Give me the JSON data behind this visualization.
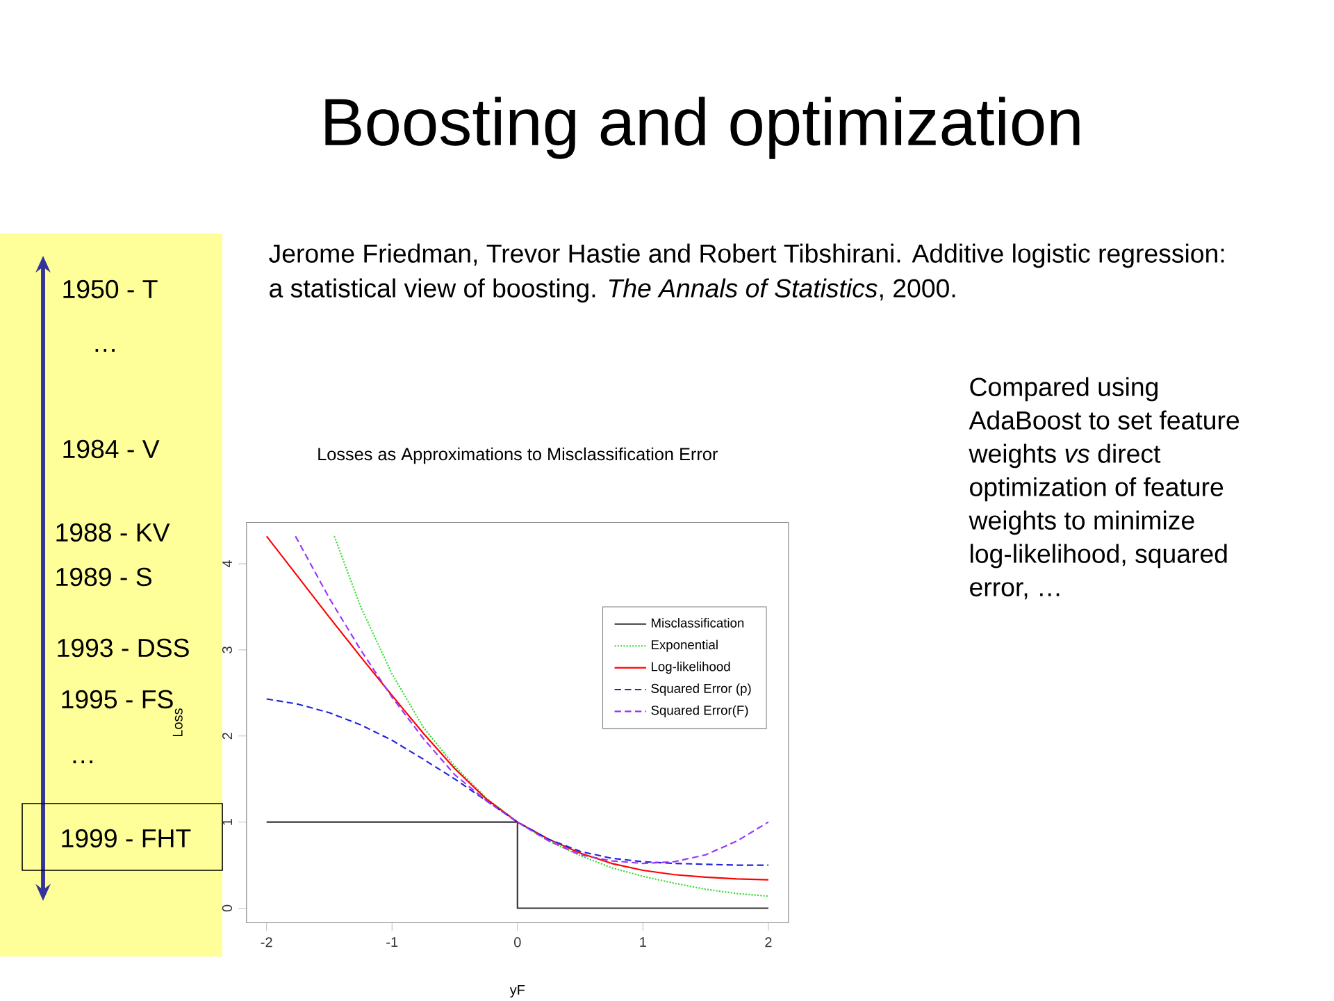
{
  "chart_data": {
    "type": "line",
    "title": "Losses as Approximations to Misclassification Error",
    "xlabel": "yF",
    "ylabel": "Loss",
    "xlim": [
      -2.16,
      2.16
    ],
    "ylim": [
      -0.17,
      4.48
    ],
    "xticks": [
      -2,
      -1,
      0,
      1,
      2
    ],
    "yticks": [
      0,
      1,
      2,
      3,
      4
    ],
    "legend": "top right",
    "series": [
      {
        "name": "Misclassification",
        "color": "#333333",
        "line_style": "solid",
        "x": [
          -2,
          0,
          0,
          2
        ],
        "values": [
          1,
          1,
          0,
          0
        ]
      },
      {
        "name": "Exponential",
        "color": "#33dd33",
        "line_style": "dotted",
        "x": [
          -1.46,
          -1.25,
          -1,
          -0.75,
          -0.5,
          -0.25,
          0,
          0.25,
          0.5,
          0.75,
          1,
          1.25,
          1.5,
          1.75,
          2
        ],
        "values": [
          4.32,
          3.5,
          2.72,
          2.1,
          1.65,
          1.28,
          1,
          0.78,
          0.61,
          0.47,
          0.37,
          0.29,
          0.22,
          0.17,
          0.14
        ]
      },
      {
        "name": "Log-likelihood",
        "color": "#ff0000",
        "line_style": "solid",
        "x": [
          -2,
          -1.75,
          -1.5,
          -1.25,
          -1,
          -0.75,
          -0.5,
          -0.25,
          0,
          0.25,
          0.5,
          0.75,
          1,
          1.25,
          1.5,
          1.75,
          2
        ],
        "values": [
          4.32,
          3.85,
          3.38,
          2.92,
          2.47,
          2.03,
          1.62,
          1.27,
          1,
          0.8,
          0.64,
          0.52,
          0.44,
          0.39,
          0.36,
          0.34,
          0.33
        ]
      },
      {
        "name": "Squared Error (p)",
        "color": "#2222dd",
        "line_style": "dashed",
        "x": [
          -2,
          -1.75,
          -1.5,
          -1.25,
          -1,
          -0.75,
          -0.5,
          -0.25,
          0,
          0.25,
          0.5,
          0.75,
          1,
          1.25,
          1.5,
          1.75,
          2
        ],
        "values": [
          2.43,
          2.37,
          2.27,
          2.13,
          1.95,
          1.73,
          1.5,
          1.25,
          1,
          0.8,
          0.66,
          0.58,
          0.54,
          0.52,
          0.51,
          0.5,
          0.5
        ]
      },
      {
        "name": "Squared Error(F)",
        "color": "#9933ff",
        "line_style": "dashed",
        "x": [
          -1.77,
          -1.5,
          -1.25,
          -1,
          -0.75,
          -0.5,
          -0.25,
          0,
          0.25,
          0.5,
          0.75,
          1,
          1.25,
          1.5,
          1.75,
          2
        ],
        "values": [
          4.32,
          3.6,
          3.0,
          2.45,
          1.97,
          1.55,
          1.25,
          1,
          0.78,
          0.62,
          0.55,
          0.52,
          0.54,
          0.62,
          0.78,
          1.0
        ]
      }
    ],
    "annotations": [
      "Boosting and optimization",
      "1950 - T",
      "…",
      "1984 - V",
      "1988 - KV",
      "1989 - S",
      "1993 - DSS",
      "1995 - FS",
      "…",
      "1999 - FHT",
      "Jerome Friedman, Trevor Hastie and Robert Tibshirani. Additive logistic regression: a statistical view of boosting. *The Annals of Statistics*, 2000.",
      "Compared using AdaBoost to set feature weights *vs* direct optimization of feature weights to minimize log-likelihood, squared error, …"
    ]
  }
}
